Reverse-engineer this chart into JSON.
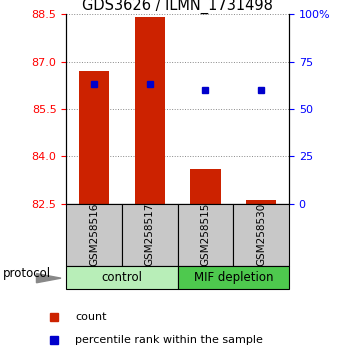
{
  "title": "GDS3626 / ILMN_1731498",
  "samples": [
    "GSM258516",
    "GSM258517",
    "GSM258515",
    "GSM258530"
  ],
  "groups": [
    {
      "label": "control",
      "color": "#B8EEB8",
      "start": 0,
      "end": 2
    },
    {
      "label": "MIF depletion",
      "color": "#4EC94E",
      "start": 2,
      "end": 4
    }
  ],
  "bar_values": [
    86.7,
    88.4,
    83.6,
    82.6
  ],
  "bar_bottom": 82.5,
  "percentile_values": [
    63,
    63,
    60,
    60
  ],
  "ylim_left": [
    82.5,
    88.5
  ],
  "ylim_right": [
    0,
    100
  ],
  "yticks_left": [
    82.5,
    84,
    85.5,
    87,
    88.5
  ],
  "yticks_right": [
    0,
    25,
    50,
    75,
    100
  ],
  "bar_color": "#CC2200",
  "dot_color": "#0000CC",
  "bar_width": 0.55,
  "legend_count_label": "count",
  "legend_percentile_label": "percentile rank within the sample",
  "grid_color": "#888888",
  "protocol_label": "protocol",
  "sample_box_color": "#C8C8C8"
}
